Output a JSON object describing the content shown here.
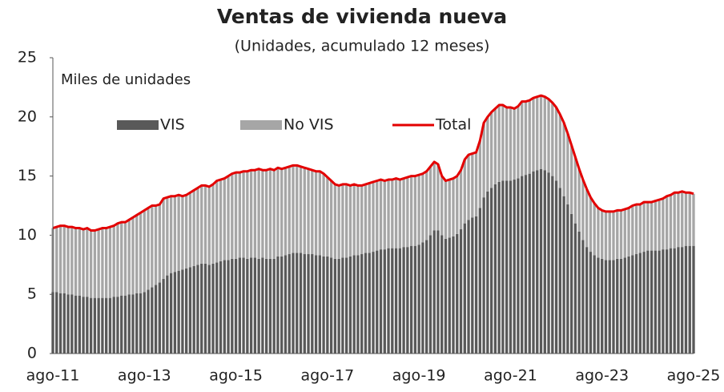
{
  "chart_data": {
    "type": "stacked_bar_line",
    "title": "Ventas de vivienda nueva",
    "subtitle": "(Unidades, acumulado 12 meses)",
    "y_label": "Miles de unidades",
    "categories": [
      "ago-11",
      null,
      null,
      null,
      null,
      null,
      null,
      null,
      null,
      null,
      null,
      null,
      null,
      null,
      null,
      null,
      null,
      null,
      null,
      null,
      null,
      null,
      null,
      null,
      "ago-13",
      null,
      null,
      null,
      null,
      null,
      null,
      null,
      null,
      null,
      null,
      null,
      null,
      null,
      null,
      null,
      null,
      null,
      null,
      null,
      null,
      null,
      null,
      null,
      "ago-15",
      null,
      null,
      null,
      null,
      null,
      null,
      null,
      null,
      null,
      null,
      null,
      null,
      null,
      null,
      null,
      null,
      null,
      null,
      null,
      null,
      null,
      null,
      null,
      "ago-17",
      null,
      null,
      null,
      null,
      null,
      null,
      null,
      null,
      null,
      null,
      null,
      null,
      null,
      null,
      null,
      null,
      null,
      null,
      null,
      null,
      null,
      null,
      null,
      "ago-19",
      null,
      null,
      null,
      null,
      null,
      null,
      null,
      null,
      null,
      null,
      null,
      null,
      null,
      null,
      null,
      null,
      null,
      null,
      null,
      null,
      null,
      null,
      null,
      "ago-21",
      null,
      null,
      null,
      null,
      null,
      null,
      null,
      null,
      null,
      null,
      null,
      null,
      null,
      null,
      null,
      null,
      null,
      null,
      null,
      null,
      null,
      null,
      null,
      "ago-23",
      null,
      null,
      null,
      null,
      null,
      null,
      null,
      null,
      null,
      null,
      null,
      null,
      null,
      null,
      null,
      null,
      null,
      null,
      null,
      null,
      null,
      null,
      null,
      "ago-25"
    ],
    "series": [
      {
        "name": "VIS",
        "color": "#595959",
        "kind": "bar",
        "values": [
          5.2,
          5.2,
          5.1,
          5.1,
          5.0,
          5.0,
          4.9,
          4.9,
          4.8,
          4.8,
          4.7,
          4.7,
          4.7,
          4.7,
          4.7,
          4.7,
          4.8,
          4.8,
          4.9,
          4.9,
          5.0,
          5.0,
          5.1,
          5.1,
          5.2,
          5.4,
          5.6,
          5.8,
          6.0,
          6.3,
          6.6,
          6.8,
          6.9,
          7.0,
          7.1,
          7.2,
          7.3,
          7.4,
          7.5,
          7.6,
          7.6,
          7.5,
          7.6,
          7.7,
          7.8,
          7.9,
          7.9,
          8.0,
          8.0,
          8.1,
          8.1,
          8.0,
          8.1,
          8.1,
          8.0,
          8.1,
          8.0,
          8.0,
          8.0,
          8.2,
          8.2,
          8.3,
          8.4,
          8.5,
          8.5,
          8.5,
          8.4,
          8.4,
          8.4,
          8.3,
          8.3,
          8.2,
          8.2,
          8.1,
          8.0,
          8.0,
          8.1,
          8.1,
          8.2,
          8.3,
          8.3,
          8.4,
          8.5,
          8.5,
          8.6,
          8.7,
          8.8,
          8.8,
          8.9,
          8.9,
          8.9,
          8.9,
          9.0,
          9.0,
          9.1,
          9.1,
          9.2,
          9.4,
          9.6,
          10.0,
          10.4,
          10.4,
          10.0,
          9.7,
          9.8,
          9.9,
          10.1,
          10.5,
          11.0,
          11.3,
          11.5,
          11.6,
          12.3,
          13.2,
          13.7,
          14.0,
          14.3,
          14.5,
          14.6,
          14.6,
          14.6,
          14.7,
          14.8,
          15.0,
          15.1,
          15.2,
          15.4,
          15.5,
          15.6,
          15.5,
          15.3,
          15.0,
          14.6,
          14.0,
          13.3,
          12.6,
          11.8,
          11.0,
          10.3,
          9.6,
          9.0,
          8.6,
          8.3,
          8.1,
          8.0,
          7.9,
          7.9,
          7.9,
          8.0,
          8.0,
          8.1,
          8.2,
          8.3,
          8.4,
          8.5,
          8.6,
          8.7,
          8.7,
          8.7,
          8.7,
          8.8,
          8.8,
          8.9,
          8.9,
          9.0,
          9.0,
          9.1,
          9.1,
          9.1
        ]
      },
      {
        "name": "No VIS",
        "color": "#a6a6a6",
        "kind": "bar",
        "values": [
          5.4,
          5.5,
          5.7,
          5.7,
          5.7,
          5.7,
          5.7,
          5.7,
          5.7,
          5.8,
          5.7,
          5.7,
          5.8,
          5.9,
          5.9,
          6.0,
          6.0,
          6.2,
          6.2,
          6.2,
          6.3,
          6.5,
          6.6,
          6.8,
          6.9,
          6.9,
          6.9,
          6.7,
          6.6,
          6.8,
          6.6,
          6.5,
          6.4,
          6.4,
          6.2,
          6.2,
          6.3,
          6.4,
          6.5,
          6.6,
          6.6,
          6.6,
          6.7,
          6.9,
          6.9,
          6.9,
          7.1,
          7.2,
          7.3,
          7.2,
          7.3,
          7.4,
          7.4,
          7.4,
          7.6,
          7.4,
          7.5,
          7.6,
          7.5,
          7.5,
          7.4,
          7.4,
          7.4,
          7.4,
          7.4,
          7.3,
          7.3,
          7.2,
          7.1,
          7.1,
          7.1,
          7.0,
          6.7,
          6.5,
          6.3,
          6.2,
          6.2,
          6.2,
          6.0,
          6.0,
          5.9,
          5.8,
          5.8,
          5.9,
          5.9,
          5.9,
          5.9,
          5.8,
          5.8,
          5.8,
          5.9,
          5.8,
          5.8,
          5.9,
          5.9,
          5.9,
          5.9,
          5.8,
          5.8,
          5.8,
          5.8,
          5.6,
          5.0,
          4.9,
          4.9,
          4.9,
          4.9,
          5.0,
          5.4,
          5.5,
          5.4,
          5.4,
          5.7,
          6.3,
          6.3,
          6.4,
          6.4,
          6.5,
          6.4,
          6.2,
          6.2,
          6.0,
          6.1,
          6.3,
          6.2,
          6.2,
          6.2,
          6.2,
          6.2,
          6.2,
          6.2,
          6.2,
          6.2,
          6.2,
          6.2,
          6.0,
          5.8,
          5.6,
          5.3,
          5.1,
          4.9,
          4.6,
          4.4,
          4.2,
          4.1,
          4.1,
          4.1,
          4.1,
          4.1,
          4.1,
          4.1,
          4.1,
          4.2,
          4.2,
          4.1,
          4.2,
          4.1,
          4.1,
          4.2,
          4.3,
          4.3,
          4.5,
          4.5,
          4.7,
          4.6,
          4.7,
          4.5,
          4.5,
          4.4
        ]
      },
      {
        "name": "Total",
        "color": "#e30000",
        "kind": "line",
        "values": [
          10.6,
          10.7,
          10.8,
          10.8,
          10.7,
          10.7,
          10.6,
          10.6,
          10.5,
          10.6,
          10.4,
          10.4,
          10.5,
          10.6,
          10.6,
          10.7,
          10.8,
          11.0,
          11.1,
          11.1,
          11.3,
          11.5,
          11.7,
          11.9,
          12.1,
          12.3,
          12.5,
          12.5,
          12.6,
          13.1,
          13.2,
          13.3,
          13.3,
          13.4,
          13.3,
          13.4,
          13.6,
          13.8,
          14.0,
          14.2,
          14.2,
          14.1,
          14.3,
          14.6,
          14.7,
          14.8,
          15.0,
          15.2,
          15.3,
          15.3,
          15.4,
          15.4,
          15.5,
          15.5,
          15.6,
          15.5,
          15.5,
          15.6,
          15.5,
          15.7,
          15.6,
          15.7,
          15.8,
          15.9,
          15.9,
          15.8,
          15.7,
          15.6,
          15.5,
          15.4,
          15.4,
          15.2,
          14.9,
          14.6,
          14.3,
          14.2,
          14.3,
          14.3,
          14.2,
          14.3,
          14.2,
          14.2,
          14.3,
          14.4,
          14.5,
          14.6,
          14.7,
          14.6,
          14.7,
          14.7,
          14.8,
          14.7,
          14.8,
          14.9,
          15.0,
          15.0,
          15.1,
          15.2,
          15.4,
          15.8,
          16.2,
          16.0,
          15.0,
          14.6,
          14.7,
          14.8,
          15.0,
          15.5,
          16.4,
          16.8,
          16.9,
          17.0,
          18.0,
          19.5,
          20.0,
          20.4,
          20.7,
          21.0,
          21.0,
          20.8,
          20.8,
          20.7,
          20.9,
          21.3,
          21.3,
          21.4,
          21.6,
          21.7,
          21.8,
          21.7,
          21.5,
          21.2,
          20.8,
          20.2,
          19.5,
          18.6,
          17.6,
          16.6,
          15.6,
          14.7,
          13.9,
          13.2,
          12.7,
          12.3,
          12.1,
          12.0,
          12.0,
          12.0,
          12.1,
          12.1,
          12.2,
          12.3,
          12.5,
          12.6,
          12.6,
          12.8,
          12.8,
          12.8,
          12.9,
          13.0,
          13.1,
          13.3,
          13.4,
          13.6,
          13.6,
          13.7,
          13.6,
          13.6,
          13.5
        ]
      }
    ],
    "ylim": [
      0,
      25
    ],
    "yticks": [
      0,
      5,
      10,
      15,
      20,
      25
    ],
    "grid": false
  }
}
